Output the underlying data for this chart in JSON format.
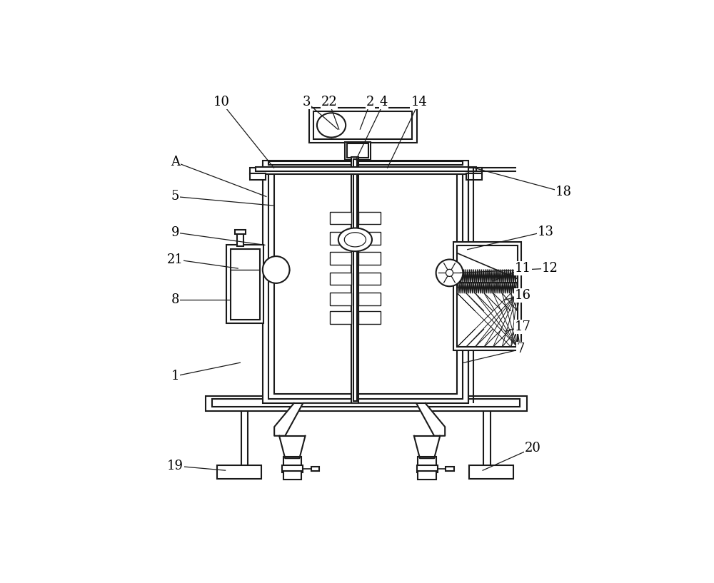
{
  "bg": "#ffffff",
  "lc": "#1a1a1a",
  "lw": 1.5,
  "fw": 10.0,
  "fh": 8.17,
  "annotations": {
    "A": {
      "lbl": [
        0.075,
        0.795
      ],
      "pt": [
        0.278,
        0.718
      ]
    },
    "10": {
      "lbl": [
        0.178,
        0.928
      ],
      "pt": [
        0.295,
        0.782
      ]
    },
    "3": {
      "lbl": [
        0.368,
        0.928
      ],
      "pt": [
        0.437,
        0.868
      ]
    },
    "22": {
      "lbl": [
        0.418,
        0.928
      ],
      "pt": [
        0.44,
        0.868
      ]
    },
    "2": {
      "lbl": [
        0.51,
        0.928
      ],
      "pt": [
        0.487,
        0.868
      ]
    },
    "4": {
      "lbl": [
        0.54,
        0.928
      ],
      "pt": [
        0.478,
        0.8
      ]
    },
    "14": {
      "lbl": [
        0.618,
        0.928
      ],
      "pt": [
        0.548,
        0.782
      ]
    },
    "18": {
      "lbl": [
        0.94,
        0.728
      ],
      "pt": [
        0.74,
        0.782
      ]
    },
    "5": {
      "lbl": [
        0.075,
        0.718
      ],
      "pt": [
        0.293,
        0.698
      ]
    },
    "13": {
      "lbl": [
        0.9,
        0.64
      ],
      "pt": [
        0.726,
        0.6
      ]
    },
    "9": {
      "lbl": [
        0.075,
        0.638
      ],
      "pt": [
        0.275,
        0.61
      ]
    },
    "12": {
      "lbl": [
        0.91,
        0.558
      ],
      "pt": [
        0.71,
        0.548
      ]
    },
    "11": {
      "lbl": [
        0.85,
        0.558
      ],
      "pt": [
        0.783,
        0.53
      ]
    },
    "16": {
      "lbl": [
        0.85,
        0.498
      ],
      "pt": [
        0.81,
        0.488
      ]
    },
    "17": {
      "lbl": [
        0.85,
        0.428
      ],
      "pt": [
        0.81,
        0.418
      ]
    },
    "21": {
      "lbl": [
        0.075,
        0.578
      ],
      "pt": [
        0.215,
        0.558
      ]
    },
    "8": {
      "lbl": [
        0.075,
        0.488
      ],
      "pt": [
        0.195,
        0.488
      ]
    },
    "7": {
      "lbl": [
        0.845,
        0.378
      ],
      "pt": [
        0.718,
        0.348
      ]
    },
    "1": {
      "lbl": [
        0.075,
        0.318
      ],
      "pt": [
        0.22,
        0.348
      ]
    },
    "19": {
      "lbl": [
        0.075,
        0.118
      ],
      "pt": [
        0.187,
        0.108
      ]
    },
    "20": {
      "lbl": [
        0.872,
        0.158
      ],
      "pt": [
        0.76,
        0.108
      ]
    }
  }
}
